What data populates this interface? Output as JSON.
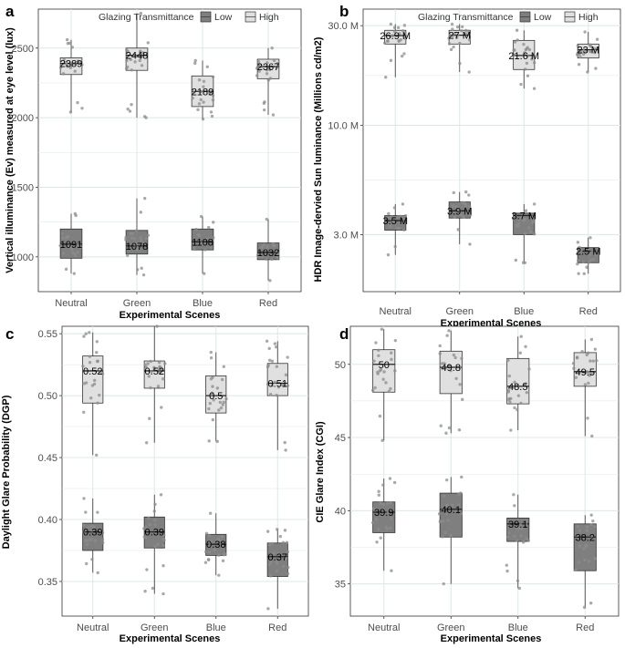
{
  "legend": {
    "title": "Glazing Transmittance",
    "items": [
      {
        "name": "Low",
        "color": "#7f7f7f"
      },
      {
        "name": "High",
        "color": "#e0e0e0"
      }
    ]
  },
  "colors": {
    "low": "#7f7f7f",
    "high": "#e0e0e0",
    "grid": "#dbe8e5",
    "point": "#8c8c8c",
    "text_tick": "#4d4d4d"
  },
  "chart_data": [
    {
      "panel": "a",
      "type": "box",
      "xlabel": "Experimental Scenes",
      "ylabel": "Vertical illuminance (Ev) measured at eye level (lux)",
      "categories": [
        "Neutral",
        "Green",
        "Blue",
        "Red"
      ],
      "yscale": "linear",
      "ylim": [
        750,
        2780
      ],
      "yticks": [
        1000,
        1500,
        2000,
        2500
      ],
      "ytick_labels": [
        "1000",
        "1500",
        "2000",
        "2500"
      ],
      "series": [
        {
          "name": "Low",
          "boxes": [
            {
              "q1": 990,
              "median": 1091,
              "q3": 1200,
              "whisker_low": 880,
              "whisker_high": 1310,
              "label": "1091"
            },
            {
              "q1": 1020,
              "median": 1078,
              "q3": 1190,
              "whisker_low": 870,
              "whisker_high": 1420,
              "label": "1078"
            },
            {
              "q1": 1050,
              "median": 1108,
              "q3": 1200,
              "whisker_low": 880,
              "whisker_high": 1290,
              "label": "1108"
            },
            {
              "q1": 980,
              "median": 1032,
              "q3": 1100,
              "whisker_low": 830,
              "whisker_high": 1270,
              "label": "1032"
            }
          ]
        },
        {
          "name": "High",
          "boxes": [
            {
              "q1": 2310,
              "median": 2389,
              "q3": 2430,
              "whisker_low": 2040,
              "whisker_high": 2560,
              "label": "2389"
            },
            {
              "q1": 2340,
              "median": 2448,
              "q3": 2500,
              "whisker_low": 2000,
              "whisker_high": 2750,
              "label": "2448"
            },
            {
              "q1": 2080,
              "median": 2189,
              "q3": 2300,
              "whisker_low": 1990,
              "whisker_high": 2410,
              "label": "2189"
            },
            {
              "q1": 2280,
              "median": 2367,
              "q3": 2420,
              "whisker_low": 2020,
              "whisker_high": 2500,
              "label": "2367"
            }
          ]
        }
      ]
    },
    {
      "panel": "b",
      "type": "box",
      "xlabel": "Experimental Scenes",
      "ylabel": "HDR Image-dervied Sun luminance (Millions cd/m2)",
      "categories": [
        "Neutral",
        "Green",
        "Blue",
        "Red"
      ],
      "yscale": "log",
      "ylim": [
        1.6,
        36
      ],
      "yticks": [
        3,
        10,
        30
      ],
      "ytick_labels": [
        "3.0 M",
        "10.0 M",
        "30.0 M"
      ],
      "series": [
        {
          "name": "Low",
          "boxes": [
            {
              "q1": 3.15,
              "median": 3.5,
              "q3": 3.7,
              "whisker_low": 2.4,
              "whisker_high": 4.2,
              "label": "3.5 M"
            },
            {
              "q1": 3.6,
              "median": 3.9,
              "q3": 4.3,
              "whisker_low": 2.7,
              "whisker_high": 4.8,
              "label": "3.9 M"
            },
            {
              "q1": 3.0,
              "median": 3.7,
              "q3": 3.8,
              "whisker_low": 2.2,
              "whisker_high": 4.2,
              "label": "3.7 M"
            },
            {
              "q1": 2.2,
              "median": 2.5,
              "q3": 2.6,
              "whisker_low": 1.95,
              "whisker_high": 2.9,
              "label": "2.5 M"
            }
          ]
        },
        {
          "name": "High",
          "boxes": [
            {
              "q1": 24.5,
              "median": 26.9,
              "q3": 28.5,
              "whisker_low": 17,
              "whisker_high": 30.5,
              "label": "26.9 M"
            },
            {
              "q1": 24.5,
              "median": 27,
              "q3": 28.5,
              "whisker_low": 18,
              "whisker_high": 30.5,
              "label": "27 M"
            },
            {
              "q1": 18.5,
              "median": 21.6,
              "q3": 25.5,
              "whisker_low": 15,
              "whisker_high": 28.5,
              "label": "21.6 M"
            },
            {
              "q1": 21,
              "median": 23,
              "q3": 24.5,
              "whisker_low": 18,
              "whisker_high": 28,
              "label": "23 M"
            }
          ]
        }
      ]
    },
    {
      "panel": "c",
      "type": "box",
      "xlabel": "Experimental Scenes",
      "ylabel": "Daylight Glare Probability (DGP)",
      "categories": [
        "Neutral",
        "Green",
        "Blue",
        "Red"
      ],
      "yscale": "linear",
      "ylim": [
        0.322,
        0.556
      ],
      "yticks": [
        0.35,
        0.4,
        0.45,
        0.5,
        0.55
      ],
      "ytick_labels": [
        "0.35",
        "0.40",
        "0.45",
        "0.50",
        "0.55"
      ],
      "series": [
        {
          "name": "Low",
          "boxes": [
            {
              "q1": 0.375,
              "median": 0.39,
              "q3": 0.397,
              "whisker_low": 0.357,
              "whisker_high": 0.417,
              "label": "0.39"
            },
            {
              "q1": 0.377,
              "median": 0.39,
              "q3": 0.402,
              "whisker_low": 0.34,
              "whisker_high": 0.42,
              "label": "0.39"
            },
            {
              "q1": 0.371,
              "median": 0.38,
              "q3": 0.388,
              "whisker_low": 0.355,
              "whisker_high": 0.405,
              "label": "0.38"
            },
            {
              "q1": 0.354,
              "median": 0.37,
              "q3": 0.381,
              "whisker_low": 0.328,
              "whisker_high": 0.392,
              "label": "0.37"
            }
          ]
        },
        {
          "name": "High",
          "boxes": [
            {
              "q1": 0.494,
              "median": 0.52,
              "q3": 0.532,
              "whisker_low": 0.452,
              "whisker_high": 0.551,
              "label": "0.52"
            },
            {
              "q1": 0.506,
              "median": 0.52,
              "q3": 0.528,
              "whisker_low": 0.462,
              "whisker_high": 0.556,
              "label": "0.52"
            },
            {
              "q1": 0.486,
              "median": 0.5,
              "q3": 0.516,
              "whisker_low": 0.463,
              "whisker_high": 0.535,
              "label": "0.5"
            },
            {
              "q1": 0.5,
              "median": 0.51,
              "q3": 0.526,
              "whisker_low": 0.456,
              "whisker_high": 0.544,
              "label": "0.51"
            }
          ]
        }
      ]
    },
    {
      "panel": "d",
      "type": "box",
      "xlabel": "Experimental Scenes",
      "ylabel": "CIE Glare Index (CGI)",
      "categories": [
        "Neutral",
        "Green",
        "Blue",
        "Red"
      ],
      "yscale": "linear",
      "ylim": [
        32.8,
        52.6
      ],
      "yticks": [
        35,
        40,
        45,
        50
      ],
      "ytick_labels": [
        "35",
        "40",
        "45",
        "50"
      ],
      "series": [
        {
          "name": "Low",
          "boxes": [
            {
              "q1": 38.5,
              "median": 39.9,
              "q3": 40.6,
              "whisker_low": 35.9,
              "whisker_high": 42.2,
              "label": "39.9"
            },
            {
              "q1": 38.2,
              "median": 40.1,
              "q3": 41.2,
              "whisker_low": 35.0,
              "whisker_high": 42.3,
              "label": "40.1"
            },
            {
              "q1": 37.9,
              "median": 39.1,
              "q3": 39.5,
              "whisker_low": 34.7,
              "whisker_high": 41.1,
              "label": "39.1"
            },
            {
              "q1": 35.9,
              "median": 38.2,
              "q3": 39.1,
              "whisker_low": 33.4,
              "whisker_high": 39.7,
              "label": "38.2"
            }
          ]
        },
        {
          "name": "High",
          "boxes": [
            {
              "q1": 48.1,
              "median": 50,
              "q3": 51.0,
              "whisker_low": 44.8,
              "whisker_high": 52.4,
              "label": "50"
            },
            {
              "q1": 48.0,
              "median": 49.8,
              "q3": 50.9,
              "whisker_low": 45.3,
              "whisker_high": 52.3,
              "label": "49.8"
            },
            {
              "q1": 47.3,
              "median": 48.5,
              "q3": 50.4,
              "whisker_low": 45.5,
              "whisker_high": 51.9,
              "label": "48.5"
            },
            {
              "q1": 48.5,
              "median": 49.5,
              "q3": 50.8,
              "whisker_low": 45.1,
              "whisker_high": 51.7,
              "label": "49.5"
            }
          ]
        }
      ]
    }
  ]
}
